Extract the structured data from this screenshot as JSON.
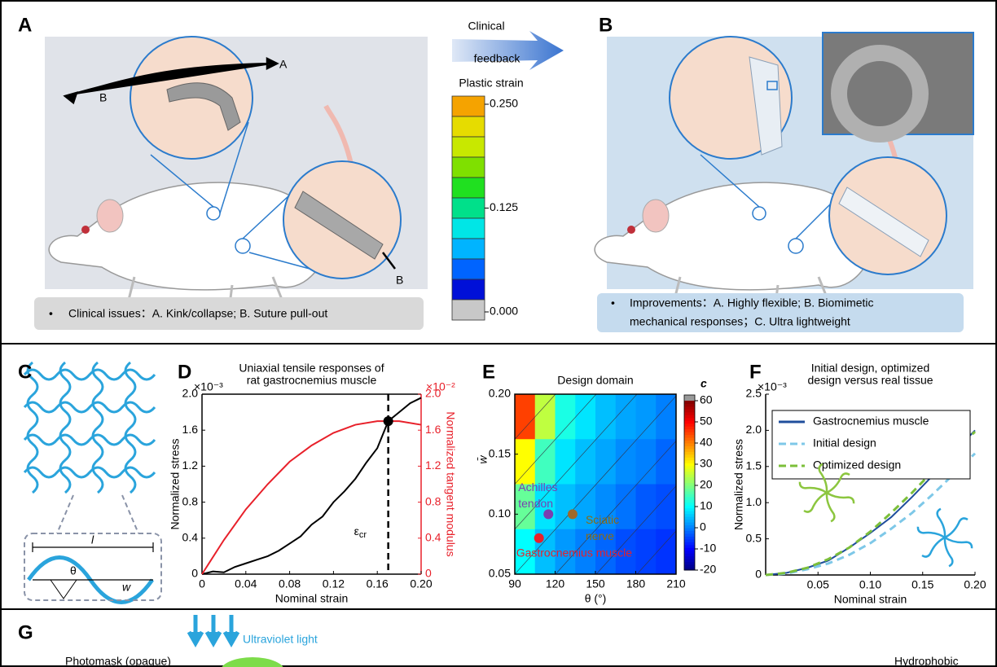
{
  "panels": {
    "A": {
      "letter": "A",
      "annotations": [
        "A",
        "B",
        "B"
      ],
      "caption": {
        "bullet": "•",
        "text": "Clinical issues：A. Kink/collapse; B. Suture pull-out"
      }
    },
    "arrow": {
      "lines": [
        "Clinical",
        "feedback"
      ]
    },
    "colorbar": {
      "title": "Plastic strain",
      "lim": [
        0,
        0.25
      ],
      "ticks": [
        {
          "value": 0.25,
          "label": "0.250"
        },
        {
          "value": 0.125,
          "label": "0.125"
        },
        {
          "value": 0,
          "label": "0.000"
        }
      ],
      "colors": [
        "#f5a300",
        "#e6dc00",
        "#c8e800",
        "#7fe000",
        "#20e020",
        "#00e08a",
        "#00e6e6",
        "#00b4ff",
        "#0064ff",
        "#0010d8",
        "#c8c8c8"
      ]
    },
    "B": {
      "letter": "B",
      "caption": {
        "bullet": "•",
        "lines": [
          "Improvements：A. Highly flexible; B. Biomimetic",
          "mechanical responses；C. Ultra lightweight"
        ]
      }
    },
    "C": {
      "letter": "C",
      "labels": [
        "l",
        "θ",
        "w"
      ]
    },
    "D": {
      "letter": "D"
    },
    "E": {
      "letter": "E"
    },
    "F": {
      "letter": "F"
    },
    "G": {
      "letter": "G",
      "labels": [
        "Ultraviolet light",
        "Photomask (opaque)",
        "Hydrophobic"
      ]
    }
  },
  "chart_data": [
    {
      "type": "line",
      "title": [
        "Uniaxial tensile responses of",
        "rat gastrocnemius muscle"
      ],
      "x_label": "Nominal strain",
      "y_label": "Normalized stress",
      "y2_label": "Normalized tangent modulus",
      "y_multiplier": "×10⁻³",
      "y2_multiplier": "×10⁻²",
      "y2_color": "#e8202a",
      "xlim": [
        0,
        0.2
      ],
      "xticks": [
        0,
        0.04,
        0.08,
        0.12,
        0.16,
        {
          "value": 0.2,
          "label": "0.20"
        }
      ],
      "ylim": [
        0,
        2
      ],
      "yticks": [
        0,
        0.4,
        0.8,
        1.2,
        1.6,
        {
          "value": 2,
          "label": "2.0"
        }
      ],
      "y2lim": [
        0,
        2
      ],
      "y2ticks": [
        0,
        0.4,
        0.8,
        1.2,
        1.6,
        {
          "value": 2,
          "label": "2.0"
        }
      ],
      "series": [
        {
          "color": "#000000",
          "x": [
            0,
            0.01,
            0.02,
            0.03,
            0.04,
            0.05,
            0.06,
            0.07,
            0.08,
            0.09,
            0.1,
            0.11,
            0.12,
            0.13,
            0.14,
            0.15,
            0.16,
            0.17,
            0.18,
            0.19,
            0.2
          ],
          "values": [
            0,
            0.03,
            0.02,
            0.08,
            0.12,
            0.16,
            0.2,
            0.26,
            0.34,
            0.42,
            0.55,
            0.64,
            0.8,
            0.92,
            1.06,
            1.24,
            1.4,
            1.7,
            1.8,
            1.9,
            1.96
          ]
        },
        {
          "color": "#e8202a",
          "axis": "y2",
          "x": [
            0,
            0.02,
            0.04,
            0.06,
            0.08,
            0.1,
            0.12,
            0.14,
            0.16,
            0.18,
            0.2
          ],
          "values": [
            0,
            0.38,
            0.72,
            1,
            1.25,
            1.43,
            1.57,
            1.66,
            1.7,
            1.7,
            1.66
          ]
        }
      ],
      "critical_point": {
        "x": 0.17,
        "y": 1.7,
        "symbol": "ε",
        "subscript": "cr"
      }
    },
    {
      "type": "heatmap",
      "title": "Design domain",
      "x_label": "θ (°)",
      "y_label": "w̄",
      "xlim": [
        90,
        210
      ],
      "xticks": [
        90,
        120,
        150,
        180,
        210
      ],
      "ylim": [
        0.05,
        0.2
      ],
      "yticks": [
        {
          "value": 0.05,
          "label": "0.05"
        },
        {
          "value": 0.1,
          "label": "0.10"
        },
        {
          "value": 0.15,
          "label": "0.15"
        },
        {
          "value": 0.2,
          "label": "0.20"
        }
      ],
      "x_edges": [
        90,
        105,
        120,
        135,
        150,
        165,
        180,
        195,
        210
      ],
      "y_edges": [
        0.2,
        0.1625,
        0.125,
        0.0875,
        0.05
      ],
      "z": [
        [
          45,
          25,
          12,
          8,
          5,
          3,
          2,
          0
        ],
        [
          30,
          15,
          8,
          5,
          3,
          1,
          0,
          -2
        ],
        [
          18,
          8,
          5,
          3,
          1,
          -1,
          -3,
          -4
        ],
        [
          10,
          5,
          2,
          0,
          -2,
          -4,
          -5,
          -6
        ]
      ],
      "colorbar_label": "c",
      "clim": [
        -20,
        60
      ],
      "cticks": [
        -20,
        -10,
        0,
        10,
        20,
        30,
        40,
        50,
        60
      ],
      "points": [
        {
          "name": [
            "Achilles",
            "tendon"
          ],
          "x": 115,
          "y": 0.1,
          "color": "#7a3fb0",
          "label_color": "#7a3fb0"
        },
        {
          "name": [
            "Sciatic",
            "nerve"
          ],
          "x": 133,
          "y": 0.1,
          "color": "#a0692a",
          "label_color": "#8c6a10"
        },
        {
          "name": [
            "Gastrocnemius muscle"
          ],
          "x": 108,
          "y": 0.08,
          "color": "#e8202a",
          "label_color": "#e8202a"
        }
      ]
    },
    {
      "type": "line",
      "title": [
        "Initial design, optimized",
        "design versus real tissue"
      ],
      "x_label": "Nominal strain",
      "y_label": "Normalized stress",
      "y_multiplier": "×10⁻³",
      "legend": "upper left",
      "xlim": [
        0,
        0.2
      ],
      "xticks": [
        {
          "value": 0.05,
          "label": "0.05"
        },
        {
          "value": 0.1,
          "label": "0.10"
        },
        {
          "value": 0.15,
          "label": "0.15"
        },
        {
          "value": 0.2,
          "label": "0.20"
        }
      ],
      "ylim": [
        0,
        2.5
      ],
      "yticks": [
        0,
        0.5,
        {
          "value": 1,
          "label": "1.0"
        },
        1.5,
        {
          "value": 2,
          "label": "2.0"
        },
        2.5
      ],
      "series": [
        {
          "name": "Gastrocnemius muscle",
          "color": "#1f4e9c",
          "dash": false,
          "x": [
            0,
            0.02,
            0.04,
            0.06,
            0.08,
            0.1,
            0.12,
            0.14,
            0.16,
            0.18,
            0.2
          ],
          "values": [
            0,
            0.03,
            0.1,
            0.2,
            0.38,
            0.58,
            0.8,
            1.08,
            1.38,
            1.7,
            2
          ]
        },
        {
          "name": "Initial design",
          "color": "#7ec8e8",
          "dash": true,
          "x": [
            0,
            0.02,
            0.04,
            0.06,
            0.08,
            0.1,
            0.12,
            0.14,
            0.16,
            0.18,
            0.2
          ],
          "values": [
            0,
            0.02,
            0.08,
            0.16,
            0.28,
            0.44,
            0.64,
            0.86,
            1.12,
            1.4,
            1.68
          ]
        },
        {
          "name": "Optimized design",
          "color": "#7cbf3a",
          "dash": true,
          "x": [
            0,
            0.02,
            0.04,
            0.06,
            0.08,
            0.1,
            0.12,
            0.14,
            0.16,
            0.18,
            0.2
          ],
          "values": [
            0,
            0.03,
            0.1,
            0.22,
            0.38,
            0.6,
            0.86,
            1.14,
            1.44,
            1.72,
            1.98
          ]
        }
      ]
    }
  ]
}
